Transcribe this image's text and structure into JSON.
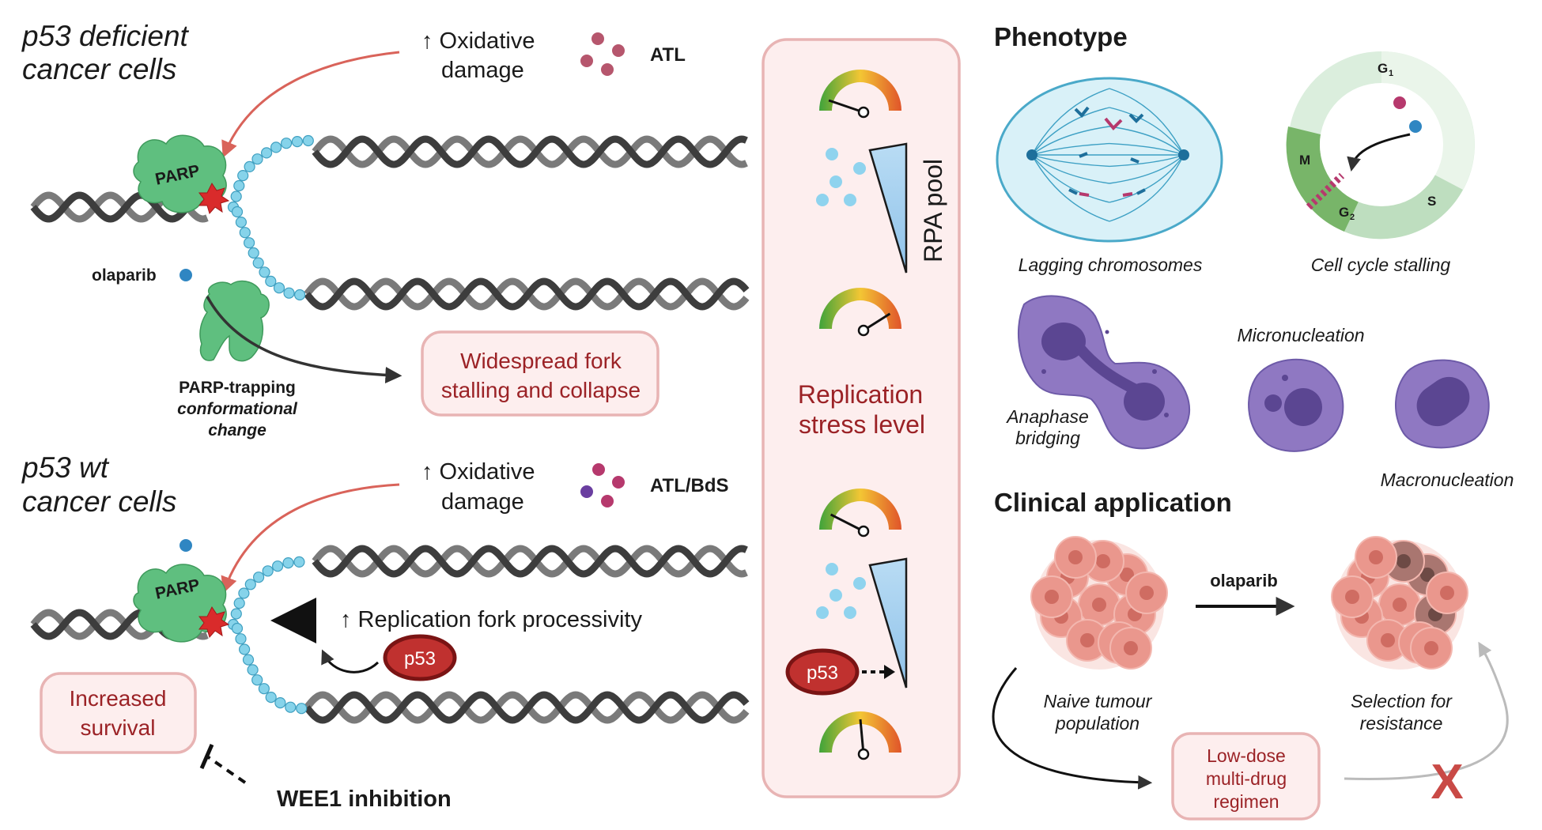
{
  "left": {
    "top_panel": {
      "title_line1": "p53 deficient",
      "title_line2": "cancer cells",
      "oxidative_line1": "↑ Oxidative",
      "oxidative_line2": "damage",
      "drug_label": "ATL",
      "parp_label": "PARP",
      "olaparib_label": "olaparib",
      "trap_line1": "PARP-trapping",
      "trap_line2": "conformational",
      "trap_line3": "change",
      "outcome_line1": "Widespread fork",
      "outcome_line2": "stalling and collapse"
    },
    "bottom_panel": {
      "title_line1": "p53 wt",
      "title_line2": "cancer cells",
      "oxidative_line1": "↑ Oxidative",
      "oxidative_line2": "damage",
      "drug_label": "ATL/BdS",
      "parp_label": "PARP",
      "processivity_label": "↑ Replication fork processivity",
      "p53_label": "p53",
      "survival_line1": "Increased",
      "survival_line2": "survival",
      "wee1_label": "WEE1 inhibition"
    }
  },
  "middle": {
    "rpa_label": "RPA pool",
    "stress_line1": "Replication",
    "stress_line2": "stress level",
    "p53_label": "p53",
    "gauge_levels": [
      0.1,
      0.85,
      0.15,
      0.5
    ]
  },
  "right": {
    "phenotype_title": "Phenotype",
    "lagging_caption": "Lagging chromosomes",
    "cellcycle_caption": "Cell cycle stalling",
    "phase_g1": "G",
    "phase_g1_sub": "1",
    "phase_s": "S",
    "phase_g2": "G",
    "phase_g2_sub": "2",
    "phase_m": "M",
    "micronucleation_caption": "Micronucleation",
    "anaphase_line1": "Anaphase",
    "anaphase_line2": "bridging",
    "macronucleation_caption": "Macronucleation",
    "clinical_title": "Clinical application",
    "olaparib_label": "olaparib",
    "naive_line1": "Naive tumour",
    "naive_line2": "population",
    "selection_line1": "Selection for",
    "selection_line2": "resistance",
    "regimen_line1": "Low-dose",
    "regimen_line2": "multi-drug",
    "regimen_line3": "regimen",
    "x_mark": "X"
  },
  "colors": {
    "parp_green": "#5fbf7f",
    "dna_grey": "#555555",
    "rpa_blue": "#86d3ea",
    "accent_red": "#9b2226",
    "box_pink": "#fdeeee",
    "box_border": "#e8b4b4",
    "cell_purple": "#8f78c2"
  }
}
